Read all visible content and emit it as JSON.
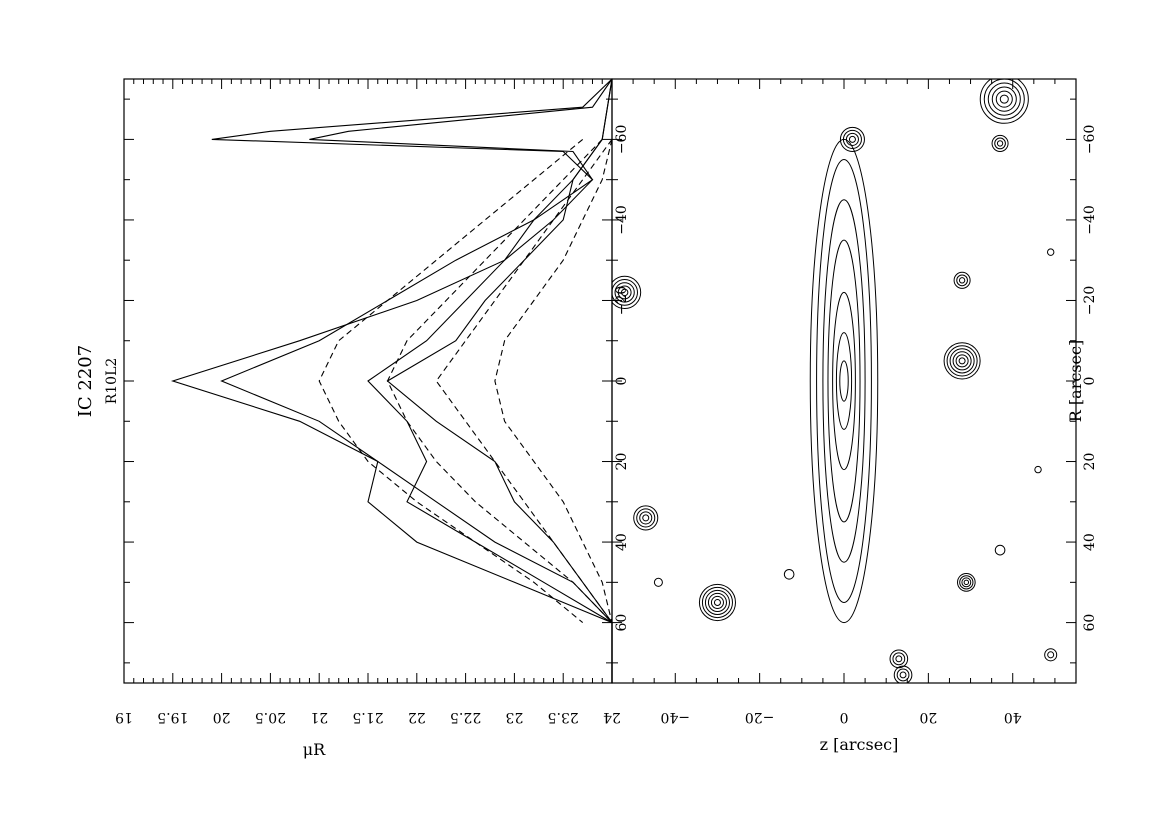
{
  "chart_data": [
    {
      "type": "line",
      "title": "IC 2207",
      "subtitle": "R10L2",
      "xlabel": "",
      "ylabel": "μR",
      "xlim": [
        -75,
        75
      ],
      "ylim": [
        24,
        19
      ],
      "x_ticks": [
        -60,
        -40,
        -20,
        0,
        20,
        40,
        60
      ],
      "y_ticks": [
        19,
        19.5,
        20,
        20.5,
        21,
        21.5,
        22,
        22.5,
        23,
        23.5,
        24
      ],
      "series": [
        {
          "style": "solid",
          "x": [
            -75,
            -68,
            -62,
            -60,
            -57,
            -50,
            -40,
            -30,
            -20,
            -10,
            0,
            10,
            20,
            30,
            40,
            50,
            60,
            75
          ],
          "values": [
            24,
            23.7,
            20.5,
            19.9,
            23.5,
            23.8,
            23.4,
            22.9,
            22.0,
            20.8,
            19.5,
            20.8,
            21.6,
            22.2,
            22.8,
            23.6,
            24,
            24
          ]
        },
        {
          "style": "solid",
          "x": [
            -75,
            -68,
            -62,
            -60,
            -57,
            -50,
            -40,
            -30,
            -20,
            -10,
            0,
            10,
            20,
            30,
            40,
            50,
            60,
            75
          ],
          "values": [
            24,
            23.8,
            21.3,
            20.9,
            23.6,
            23.8,
            23.2,
            22.4,
            21.7,
            21.0,
            20.0,
            21.0,
            21.6,
            21.5,
            22.0,
            23.0,
            24,
            24
          ]
        },
        {
          "style": "solid",
          "x": [
            -75,
            -60,
            -50,
            -40,
            -30,
            -20,
            -10,
            0,
            10,
            20,
            30,
            40,
            50,
            60,
            75
          ],
          "values": [
            24,
            23.9,
            23.6,
            23.2,
            22.9,
            22.5,
            22.1,
            21.5,
            21.9,
            22.1,
            21.9,
            22.6,
            23.3,
            24,
            24
          ]
        },
        {
          "style": "solid",
          "x": [
            -75,
            -60,
            -50,
            -40,
            -30,
            -20,
            -10,
            0,
            10,
            20,
            30,
            40,
            50,
            60,
            75
          ],
          "values": [
            24,
            23.9,
            23.6,
            23.5,
            23.1,
            22.7,
            22.4,
            21.7,
            22.2,
            22.8,
            23.0,
            23.4,
            23.7,
            24,
            24
          ]
        },
        {
          "style": "dashed",
          "x": [
            -60,
            -50,
            -40,
            -30,
            -20,
            -10,
            0,
            10,
            20,
            30,
            40,
            50,
            60
          ],
          "values": [
            23.7,
            23.2,
            22.7,
            22.2,
            21.7,
            21.2,
            21.0,
            21.2,
            21.5,
            22.0,
            22.6,
            23.2,
            23.7
          ]
        },
        {
          "style": "dashed",
          "x": [
            -60,
            -50,
            -40,
            -30,
            -20,
            -10,
            0,
            10,
            20,
            30,
            40,
            50,
            60
          ],
          "values": [
            23.9,
            23.5,
            23.1,
            22.7,
            22.3,
            21.9,
            21.7,
            21.9,
            22.2,
            22.6,
            23.1,
            23.6,
            24.0
          ]
        },
        {
          "style": "dashed",
          "x": [
            -60,
            -50,
            -40,
            -30,
            -20,
            -10,
            0,
            10,
            20,
            30,
            40,
            50,
            60
          ],
          "values": [
            24.0,
            23.7,
            23.4,
            23.1,
            22.8,
            22.5,
            22.2,
            22.5,
            22.8,
            23.1,
            23.4,
            23.7,
            24.0
          ]
        },
        {
          "style": "dashed",
          "x": [
            -60,
            -50,
            -40,
            -30,
            -20,
            -10,
            0,
            10,
            20,
            30,
            40,
            50,
            60
          ],
          "values": [
            24.0,
            23.9,
            23.7,
            23.5,
            23.2,
            22.9,
            22.8,
            22.9,
            23.2,
            23.5,
            23.7,
            23.9,
            24.0
          ]
        }
      ]
    },
    {
      "type": "contour",
      "xlabel": "R [arcsec]",
      "ylabel": "z [arcsec]",
      "xlim": [
        -75,
        75
      ],
      "ylim": [
        -55,
        55
      ],
      "x_ticks": [
        -60,
        -40,
        -20,
        0,
        20,
        40,
        60
      ],
      "y_ticks": [
        -40,
        -20,
        0,
        20,
        40
      ],
      "galaxy": {
        "center": [
          0,
          0
        ],
        "levels": [
          {
            "a": 60,
            "b": 8
          },
          {
            "a": 55,
            "b": 6.5
          },
          {
            "a": 45,
            "b": 5
          },
          {
            "a": 35,
            "b": 3.8
          },
          {
            "a": 22,
            "b": 2.7
          },
          {
            "a": 12,
            "b": 1.8
          },
          {
            "a": 5,
            "b": 1.0
          }
        ]
      },
      "sources": [
        {
          "x": -70,
          "z": 38,
          "size": 6,
          "rings": 6
        },
        {
          "x": -60,
          "z": 2,
          "size": 3,
          "rings": 4
        },
        {
          "x": -59,
          "z": 37,
          "size": 2,
          "rings": 3
        },
        {
          "x": -25,
          "z": 28,
          "size": 2,
          "rings": 3
        },
        {
          "x": -5,
          "z": 28,
          "size": 4.5,
          "rings": 6
        },
        {
          "x": 50,
          "z": 29,
          "size": 2.2,
          "rings": 4
        },
        {
          "x": 55,
          "z": -30,
          "size": 4.5,
          "rings": 6
        },
        {
          "x": 34,
          "z": -47,
          "size": 3,
          "rings": 4
        },
        {
          "x": -22,
          "z": -52,
          "size": 4,
          "rings": 5
        },
        {
          "x": 69,
          "z": 13,
          "size": 2.2,
          "rings": 3
        },
        {
          "x": 73,
          "z": 14,
          "size": 2.2,
          "rings": 3
        },
        {
          "x": 68,
          "z": 49,
          "size": 1.5,
          "rings": 2
        },
        {
          "x": 42,
          "z": 37,
          "size": 1.2,
          "rings": 1
        },
        {
          "x": 48,
          "z": -13,
          "size": 1.2,
          "rings": 1
        },
        {
          "x": 50,
          "z": -44,
          "size": 1,
          "rings": 1
        },
        {
          "x": 22,
          "z": 46,
          "size": 0.8,
          "rings": 1
        },
        {
          "x": -32,
          "z": 49,
          "size": 0.8,
          "rings": 1
        }
      ]
    }
  ]
}
